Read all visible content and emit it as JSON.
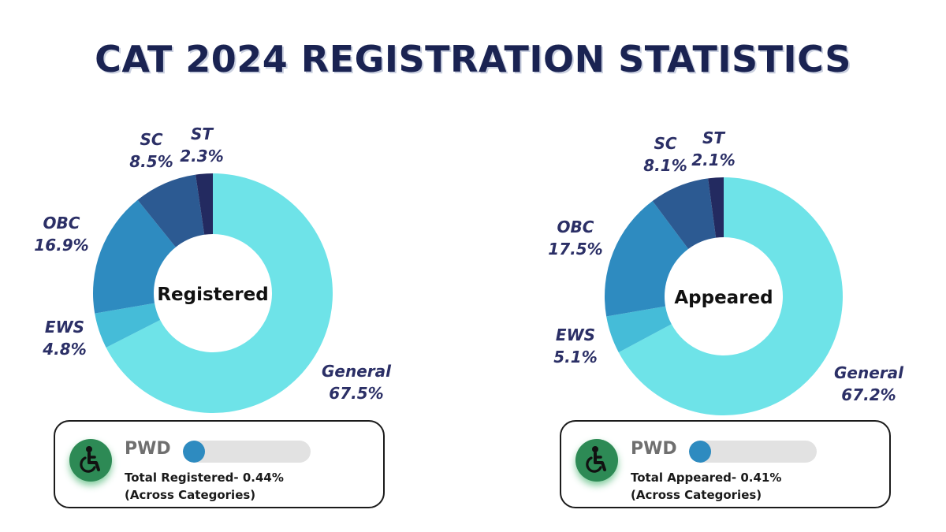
{
  "title": "CAT 2024 REGISTRATION STATISTICS",
  "chart_data": [
    {
      "type": "pie",
      "center_label": "Registered",
      "categories": [
        "General",
        "EWS",
        "OBC",
        "SC",
        "ST"
      ],
      "values": [
        67.5,
        4.8,
        16.9,
        8.5,
        2.3
      ],
      "value_labels": [
        "67.5%",
        "4.8%",
        "16.9%",
        "8.5%",
        "2.3%"
      ],
      "colors": [
        "#6ee3e8",
        "#45bcd8",
        "#2e8bc0",
        "#2c5a92",
        "#232a60"
      ]
    },
    {
      "type": "pie",
      "center_label": "Appeared",
      "categories": [
        "General",
        "EWS",
        "OBC",
        "SC",
        "ST"
      ],
      "values": [
        67.2,
        5.1,
        17.5,
        8.1,
        2.1
      ],
      "value_labels": [
        "67.2%",
        "5.1%",
        "17.5%",
        "8.1%",
        "2.1%"
      ],
      "colors": [
        "#6ee3e8",
        "#45bcd8",
        "#2e8bc0",
        "#2c5a92",
        "#232a60"
      ]
    }
  ],
  "pwd": [
    {
      "label": "PWD",
      "line1": "Total Registered- 0.44%",
      "line2": "(Across Categories)",
      "icon": "wheelchair-icon"
    },
    {
      "label": "PWD",
      "line1": "Total Appeared- 0.41%",
      "line2": "(Across Categories)",
      "icon": "wheelchair-icon"
    }
  ]
}
